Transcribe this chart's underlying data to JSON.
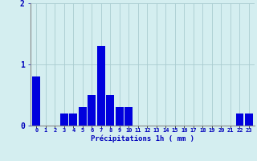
{
  "hours": [
    0,
    1,
    2,
    3,
    4,
    5,
    6,
    7,
    8,
    9,
    10,
    11,
    12,
    13,
    14,
    15,
    16,
    17,
    18,
    19,
    20,
    21,
    22,
    23
  ],
  "values": [
    0.8,
    0.0,
    0.0,
    0.2,
    0.2,
    0.3,
    0.5,
    1.3,
    0.5,
    0.3,
    0.3,
    0.0,
    0.0,
    0.0,
    0.0,
    0.0,
    0.0,
    0.0,
    0.0,
    0.0,
    0.0,
    0.0,
    0.2,
    0.2
  ],
  "bar_color": "#0000dd",
  "background_color": "#d4eef0",
  "grid_color": "#aaccd0",
  "xlabel": "Précipitations 1h ( mm )",
  "xlabel_color": "#0000bb",
  "tick_color": "#0000bb",
  "ylim": [
    0,
    2
  ],
  "yticks": [
    0,
    1,
    2
  ],
  "spine_color": "#888888"
}
